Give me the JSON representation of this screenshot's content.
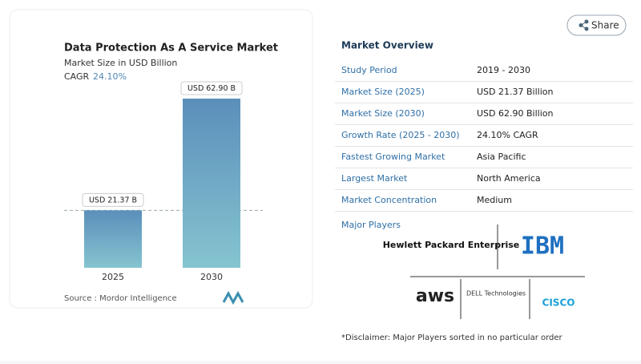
{
  "chart_data": {
    "type": "bar",
    "title": "Data Protection As A Service Market",
    "subtitle": "Market Size in USD Billion",
    "cagr_label": "CAGR",
    "cagr": "24.10%",
    "categories": [
      "2025",
      "2030"
    ],
    "values": [
      21.37,
      62.9
    ],
    "value_labels": [
      "USD 21.37 B",
      "USD 62.90 B"
    ],
    "source": "Source :  Mordor Intelligence"
  },
  "share": "Share",
  "overview": {
    "title": "Market Overview",
    "rows": [
      [
        "Study Period",
        "2019 - 2030"
      ],
      [
        "Market Size (2025)",
        "USD 21.37 Billion"
      ],
      [
        "Market Size (2030)",
        "USD 62.90 Billion"
      ],
      [
        "Growth Rate (2025 - 2030)",
        "24.10% CAGR"
      ],
      [
        "Fastest Growing Market",
        "Asia Pacific"
      ],
      [
        "Largest Market",
        "North America"
      ],
      [
        "Market Concentration",
        "Medium"
      ]
    ]
  },
  "players": {
    "title": "Major Players",
    "logos": [
      "Hewlett Packard Enterprise",
      "IBM",
      "aws",
      "DELL Technologies",
      "CISCO"
    ]
  },
  "disclaimer": "*Disclaimer: Major Players sorted in no particular order"
}
